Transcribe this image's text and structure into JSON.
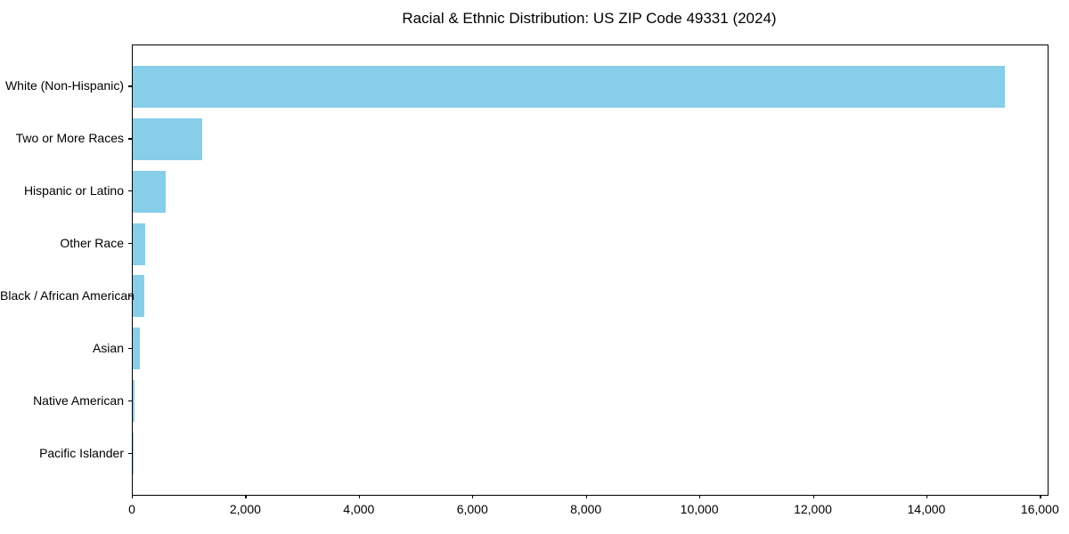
{
  "figure": {
    "background_color": "#ffffff",
    "text_color": "#000000",
    "spine_color": "#000000"
  },
  "chart_data": {
    "type": "bar",
    "orientation": "horizontal",
    "title": "Racial & Ethnic Distribution: US ZIP Code 49331 (2024)",
    "xlabel": "",
    "ylabel": "",
    "categories": [
      "White (Non-Hispanic)",
      "Two or More Races",
      "Hispanic or Latino",
      "Other Race",
      "Black / African American",
      "Asian",
      "Native American",
      "Pacific Islander"
    ],
    "values": [
      15370,
      1225,
      580,
      220,
      200,
      125,
      30,
      5
    ],
    "bar_color": "#87CEEB",
    "xlim": [
      0,
      16120
    ],
    "x_ticks": [
      0,
      2000,
      4000,
      6000,
      8000,
      10000,
      12000,
      14000,
      16000
    ],
    "x_tick_labels": [
      "0",
      "2,000",
      "4,000",
      "6,000",
      "8,000",
      "10,000",
      "12,000",
      "14,000",
      "16,000"
    ],
    "grid": false,
    "legend": null
  }
}
